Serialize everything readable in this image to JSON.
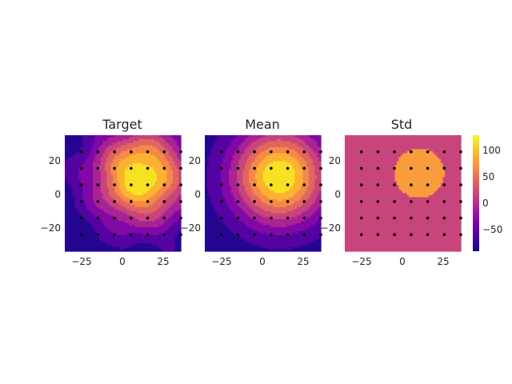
{
  "figure": {
    "colormap": "plasma",
    "point_color": "#000000"
  },
  "chart_data": [
    {
      "type": "heatmap",
      "title": "Target",
      "style": "filled-contour",
      "xlim": [
        -35,
        35
      ],
      "ylim": [
        -35,
        35
      ],
      "xticks": [
        -25,
        0,
        25
      ],
      "yticks": [
        -20,
        0,
        20
      ],
      "xtick_labels": [
        "−25",
        "0",
        "25"
      ],
      "ytick_labels": [
        "−20",
        "0",
        "20"
      ],
      "grid": false,
      "field": {
        "peak": 125,
        "center": [
          11,
          10
        ],
        "sigma": 20,
        "offset": -95,
        "noise": 10
      },
      "contour_levels": [
        -95,
        -75,
        -50,
        -25,
        0,
        25,
        50,
        75,
        100,
        125
      ],
      "grid_points": {
        "x": [
          -25,
          -15,
          -5,
          5,
          15,
          25,
          35
        ],
        "y": [
          -25,
          -15,
          -5,
          5,
          15,
          25
        ]
      }
    },
    {
      "type": "heatmap",
      "title": "Mean",
      "style": "filled-contour",
      "xlim": [
        -35,
        35
      ],
      "ylim": [
        -35,
        35
      ],
      "xticks": [
        -25,
        0,
        25
      ],
      "yticks": [
        -20,
        0,
        20
      ],
      "xtick_labels": [
        "−25",
        "0",
        "25"
      ],
      "ytick_labels": [
        "−20",
        "0",
        "20"
      ],
      "grid": false,
      "field": {
        "peak": 125,
        "center": [
          10,
          10
        ],
        "sigma": 20,
        "offset": -95,
        "noise": 0
      },
      "contour_levels": [
        -95,
        -75,
        -50,
        -25,
        0,
        25,
        50,
        75,
        100,
        125
      ],
      "grid_points": {
        "x": [
          -25,
          -15,
          -5,
          5,
          15,
          25,
          35
        ],
        "y": [
          -25,
          -15,
          -5,
          5,
          15,
          25
        ]
      }
    },
    {
      "type": "heatmap",
      "title": "Std",
      "style": "filled-contour",
      "xlim": [
        -35,
        35
      ],
      "ylim": [
        -35,
        35
      ],
      "xticks": [
        -25,
        0,
        25
      ],
      "yticks": [
        -20,
        0,
        20
      ],
      "xtick_labels": [
        "−25",
        "0",
        "25"
      ],
      "ytick_labels": [
        "−20",
        "0",
        "20"
      ],
      "grid": false,
      "field": {
        "base": 12,
        "bump_value": 40,
        "bump_center": [
          10,
          12
        ],
        "bump_radius": 15
      },
      "contour_levels": [
        -95,
        0,
        25,
        125
      ],
      "grid_points": {
        "x": [
          -25,
          -15,
          -5,
          5,
          15,
          25,
          35
        ],
        "y": [
          -25,
          -15,
          -5,
          5,
          15,
          25
        ]
      }
    }
  ],
  "colorbar": {
    "vmin": -95,
    "vmax": 125,
    "ticks": [
      100,
      50,
      0,
      -50
    ],
    "tick_labels": [
      "100",
      "50",
      "0",
      "−50"
    ],
    "placement": "right"
  }
}
